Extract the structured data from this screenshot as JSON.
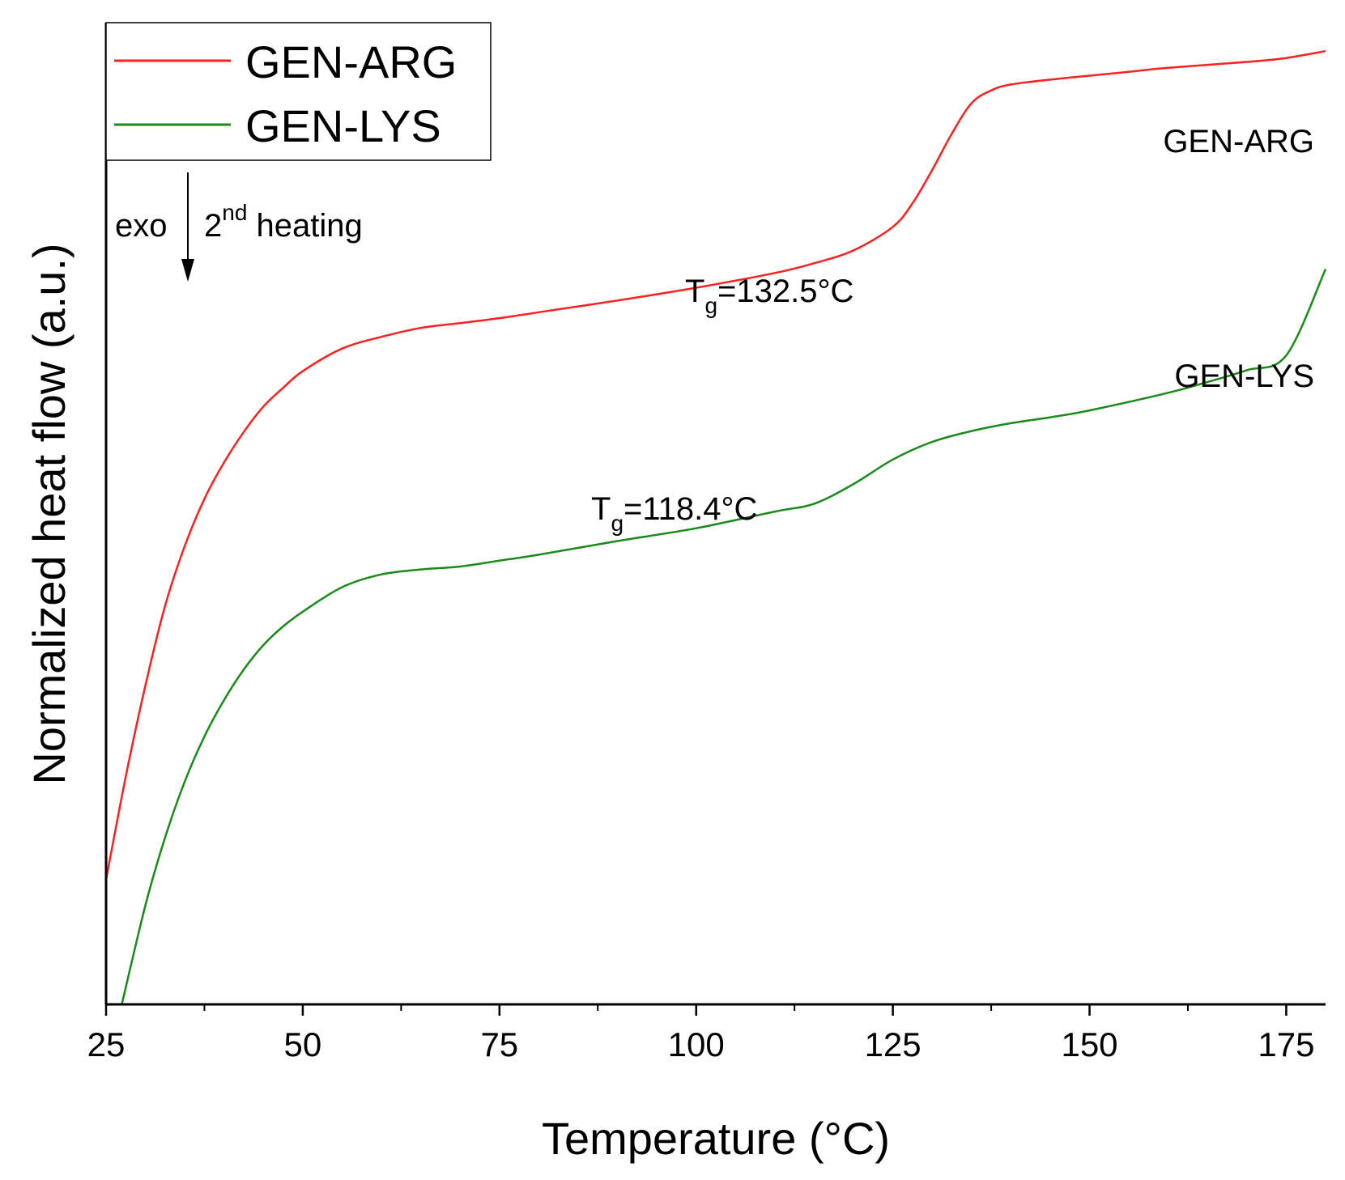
{
  "chart_data": {
    "type": "line",
    "title": "",
    "xlabel": "Temperature (°C)",
    "ylabel": "Normalized heat flow (a.u.)",
    "xlim": [
      25,
      180
    ],
    "ylim": [
      0,
      100
    ],
    "xticks": [
      25,
      50,
      75,
      100,
      125,
      150,
      175
    ],
    "xticks_minor": [
      37.5,
      62.5,
      87.5,
      112.5,
      137.5,
      162.5
    ],
    "yticks": [],
    "grid": false,
    "legend": {
      "position": "top-left",
      "entries": [
        "GEN-ARG",
        "GEN-LYS"
      ]
    },
    "colors": {
      "GEN-ARG": "#ff2020",
      "GEN-LYS": "#1a8a1a"
    },
    "series": [
      {
        "name": "GEN-ARG",
        "x": [
          25,
          27.5,
          30,
          32.5,
          35,
          37.5,
          40,
          42.5,
          45,
          47.5,
          50,
          55,
          60,
          65,
          70,
          75,
          80,
          90,
          100,
          110,
          115,
          120,
          125,
          127.5,
          130,
          132.5,
          135,
          137.5,
          140,
          145,
          150,
          155,
          160,
          170,
          175,
          180
        ],
        "values": [
          12.7,
          23.2,
          32.5,
          40.6,
          46.7,
          51.5,
          55.2,
          58.3,
          60.9,
          62.8,
          64.5,
          66.8,
          68.0,
          68.9,
          69.4,
          69.9,
          70.5,
          71.7,
          73.0,
          74.5,
          75.5,
          76.8,
          79.2,
          81.6,
          85.0,
          88.7,
          91.8,
          93.1,
          93.7,
          94.2,
          94.6,
          95.0,
          95.4,
          96.0,
          96.4,
          97.1
        ]
      },
      {
        "name": "GEN-LYS",
        "x": [
          27,
          30,
          32.5,
          35,
          37.5,
          40,
          42.5,
          45,
          47.5,
          50,
          55,
          60,
          65,
          70,
          75,
          80,
          90,
          100,
          110,
          115,
          120,
          125,
          130,
          135,
          140,
          145,
          150,
          160,
          165,
          170,
          175,
          180
        ],
        "values": [
          0.0,
          10.1,
          17.0,
          22.7,
          27.3,
          31.0,
          34.1,
          36.6,
          38.5,
          40.0,
          42.5,
          43.8,
          44.3,
          44.6,
          45.2,
          45.8,
          47.2,
          48.5,
          50.2,
          51.0,
          53.0,
          55.5,
          57.3,
          58.4,
          59.2,
          59.8,
          60.5,
          62.3,
          63.4,
          64.6,
          66.1,
          74.9
        ]
      }
    ],
    "annotations": [
      {
        "label": "GEN-ARG",
        "text": "GEN-ARG"
      },
      {
        "label": "GEN-LYS",
        "text": "GEN-LYS"
      },
      {
        "label": "tg-arg",
        "main": "T",
        "subscript": "g",
        "tail": "=132.5°C"
      },
      {
        "label": "tg-lys",
        "main": "T",
        "subscript": "g",
        "tail": "=118.4°C"
      },
      {
        "label": "exo",
        "text": "exo"
      },
      {
        "label": "heating",
        "main": "2",
        "superscript": "nd",
        "tail": " heating"
      }
    ]
  }
}
